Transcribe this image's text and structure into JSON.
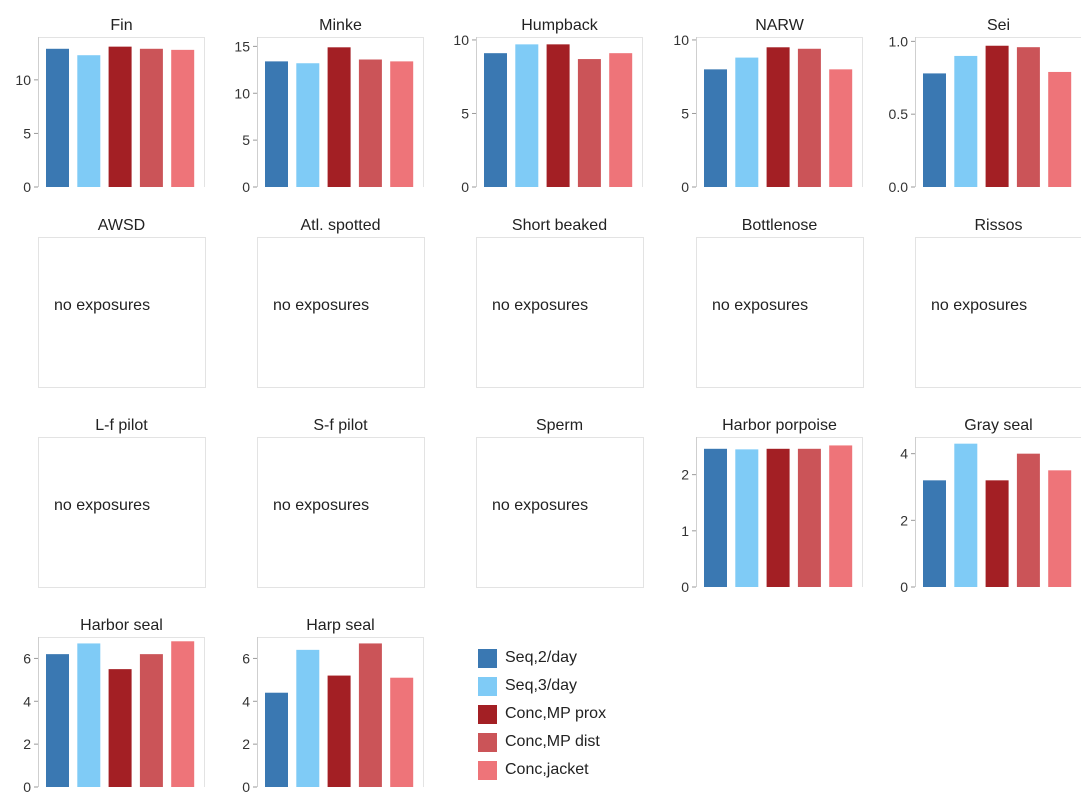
{
  "legend": {
    "items": [
      {
        "label": "Seq,2/day",
        "color": "#3a78b2"
      },
      {
        "label": "Seq,3/day",
        "color": "#7fcbf6"
      },
      {
        "label": "Conc,MP prox",
        "color": "#a31f24"
      },
      {
        "label": "Conc,MP dist",
        "color": "#cb5458"
      },
      {
        "label": "Conc,jacket",
        "color": "#ee7479"
      }
    ]
  },
  "chart_data": [
    {
      "type": "bar",
      "title": "Fin",
      "categories": [
        "Seq,2/day",
        "Seq,3/day",
        "Conc,MP prox",
        "Conc,MP dist",
        "Conc,jacket"
      ],
      "values": [
        12.9,
        12.3,
        13.1,
        12.9,
        12.8
      ],
      "ylim": [
        0,
        14
      ],
      "yticks": [
        "0",
        "5",
        "10"
      ],
      "ytick_values": [
        0,
        5,
        10
      ]
    },
    {
      "type": "bar",
      "title": "Minke",
      "categories": [
        "Seq,2/day",
        "Seq,3/day",
        "Conc,MP prox",
        "Conc,MP dist",
        "Conc,jacket"
      ],
      "values": [
        13.4,
        13.2,
        14.9,
        13.6,
        13.4
      ],
      "ylim": [
        0,
        16
      ],
      "yticks": [
        "0",
        "5",
        "10",
        "15"
      ],
      "ytick_values": [
        0,
        5,
        10,
        15
      ]
    },
    {
      "type": "bar",
      "title": "Humpback",
      "categories": [
        "Seq,2/day",
        "Seq,3/day",
        "Conc,MP prox",
        "Conc,MP dist",
        "Conc,jacket"
      ],
      "values": [
        9.1,
        9.7,
        9.7,
        8.7,
        9.1
      ],
      "ylim": [
        0,
        10.2
      ],
      "yticks": [
        "0",
        "5",
        "10"
      ],
      "ytick_values": [
        0,
        5,
        10
      ]
    },
    {
      "type": "bar",
      "title": "NARW",
      "categories": [
        "Seq,2/day",
        "Seq,3/day",
        "Conc,MP prox",
        "Conc,MP dist",
        "Conc,jacket"
      ],
      "values": [
        8.0,
        8.8,
        9.5,
        9.4,
        8.0
      ],
      "ylim": [
        0,
        10.2
      ],
      "yticks": [
        "0",
        "5",
        "10"
      ],
      "ytick_values": [
        0,
        5,
        10
      ]
    },
    {
      "type": "bar",
      "title": "Sei",
      "categories": [
        "Seq,2/day",
        "Seq,3/day",
        "Conc,MP prox",
        "Conc,MP dist",
        "Conc,jacket"
      ],
      "values": [
        0.78,
        0.9,
        0.97,
        0.96,
        0.79
      ],
      "ylim": [
        0,
        1.03
      ],
      "yticks": [
        "0.0",
        "0.5",
        "1.0"
      ],
      "ytick_values": [
        0,
        0.5,
        1.0
      ]
    },
    {
      "type": "bar",
      "title": "AWSD",
      "empty_text": "no exposures"
    },
    {
      "type": "bar",
      "title": "Atl. spotted",
      "empty_text": "no exposures"
    },
    {
      "type": "bar",
      "title": "Short beaked",
      "empty_text": "no exposures"
    },
    {
      "type": "bar",
      "title": "Bottlenose",
      "empty_text": "no exposures"
    },
    {
      "type": "bar",
      "title": "Rissos",
      "empty_text": "no exposures"
    },
    {
      "type": "bar",
      "title": "L-f pilot",
      "empty_text": "no exposures"
    },
    {
      "type": "bar",
      "title": "S-f pilot",
      "empty_text": "no exposures"
    },
    {
      "type": "bar",
      "title": "Sperm",
      "empty_text": "no exposures"
    },
    {
      "type": "bar",
      "title": "Harbor porpoise",
      "categories": [
        "Seq,2/day",
        "Seq,3/day",
        "Conc,MP prox",
        "Conc,MP dist",
        "Conc,jacket"
      ],
      "values": [
        2.46,
        2.45,
        2.46,
        2.46,
        2.52
      ],
      "ylim": [
        0,
        2.67
      ],
      "yticks": [
        "0",
        "1",
        "2"
      ],
      "ytick_values": [
        0,
        1,
        2
      ]
    },
    {
      "type": "bar",
      "title": "Gray seal",
      "categories": [
        "Seq,2/day",
        "Seq,3/day",
        "Conc,MP prox",
        "Conc,MP dist",
        "Conc,jacket"
      ],
      "values": [
        3.2,
        4.3,
        3.2,
        4.0,
        3.5
      ],
      "ylim": [
        0,
        4.5
      ],
      "yticks": [
        "0",
        "2",
        "4"
      ],
      "ytick_values": [
        0,
        2,
        4
      ]
    },
    {
      "type": "bar",
      "title": "Harbor seal",
      "categories": [
        "Seq,2/day",
        "Seq,3/day",
        "Conc,MP prox",
        "Conc,MP dist",
        "Conc,jacket"
      ],
      "values": [
        6.2,
        6.7,
        5.5,
        6.2,
        6.8
      ],
      "ylim": [
        0,
        7.0
      ],
      "yticks": [
        "0",
        "2",
        "4",
        "6"
      ],
      "ytick_values": [
        0,
        2,
        4,
        6
      ]
    },
    {
      "type": "bar",
      "title": "Harp seal",
      "categories": [
        "Seq,2/day",
        "Seq,3/day",
        "Conc,MP prox",
        "Conc,MP dist",
        "Conc,jacket"
      ],
      "values": [
        4.4,
        6.4,
        5.2,
        6.7,
        5.1
      ],
      "ylim": [
        0,
        7.0
      ],
      "yticks": [
        "0",
        "2",
        "4",
        "6"
      ],
      "ytick_values": [
        0,
        2,
        4,
        6
      ]
    }
  ]
}
